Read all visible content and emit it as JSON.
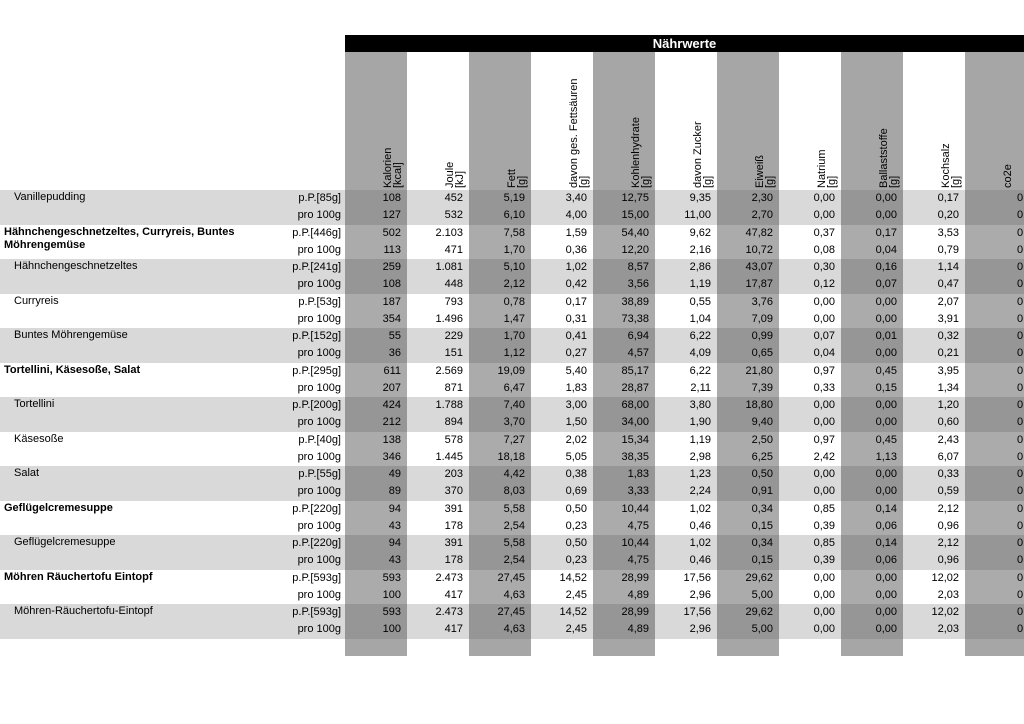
{
  "header": {
    "title": "Nährwerte"
  },
  "columns": [
    {
      "name": "Kalorien",
      "unit": "[kcal]"
    },
    {
      "name": "Joule",
      "unit": "[kJ]"
    },
    {
      "name": "Fett",
      "unit": "[g]"
    },
    {
      "name": "davon ges. Fettsäuren",
      "unit": "[g]"
    },
    {
      "name": "Kohlenhydrate",
      "unit": "[g]"
    },
    {
      "name": "davon Zucker",
      "unit": "[g]"
    },
    {
      "name": "Eiweiß",
      "unit": "[g]"
    },
    {
      "name": "Natrium",
      "unit": "[g]"
    },
    {
      "name": "Ballaststoffe",
      "unit": "[g]"
    },
    {
      "name": "Kochsalz",
      "unit": "[g]"
    },
    {
      "name": "co2e"
    }
  ],
  "rows": [
    {
      "kind": "component",
      "label": "Vanillepudding",
      "lines": [
        {
          "portion": "p.P.[85g]",
          "values": [
            "108",
            "452",
            "5,19",
            "3,40",
            "12,75",
            "9,35",
            "2,30",
            "0,00",
            "0,00",
            "0,17",
            "0"
          ]
        },
        {
          "portion": "pro 100g",
          "values": [
            "127",
            "532",
            "6,10",
            "4,00",
            "15,00",
            "11,00",
            "2,70",
            "0,00",
            "0,00",
            "0,20",
            "0"
          ]
        }
      ]
    },
    {
      "kind": "meal",
      "label": "Hähnchengeschnetzeltes, Curryreis, Buntes Möhrengemüse",
      "lines": [
        {
          "portion": "p.P.[446g]",
          "values": [
            "502",
            "2.103",
            "7,58",
            "1,59",
            "54,40",
            "9,62",
            "47,82",
            "0,37",
            "0,17",
            "3,53",
            "0"
          ]
        },
        {
          "portion": "pro 100g",
          "values": [
            "113",
            "471",
            "1,70",
            "0,36",
            "12,20",
            "2,16",
            "10,72",
            "0,08",
            "0,04",
            "0,79",
            "0"
          ]
        }
      ]
    },
    {
      "kind": "component",
      "label": "Hähnchengeschnetzeltes",
      "lines": [
        {
          "portion": "p.P.[241g]",
          "values": [
            "259",
            "1.081",
            "5,10",
            "1,02",
            "8,57",
            "2,86",
            "43,07",
            "0,30",
            "0,16",
            "1,14",
            "0"
          ]
        },
        {
          "portion": "pro 100g",
          "values": [
            "108",
            "448",
            "2,12",
            "0,42",
            "3,56",
            "1,19",
            "17,87",
            "0,12",
            "0,07",
            "0,47",
            "0"
          ]
        }
      ]
    },
    {
      "kind": "component",
      "label": "Curryreis",
      "lines": [
        {
          "portion": "p.P.[53g]",
          "values": [
            "187",
            "793",
            "0,78",
            "0,17",
            "38,89",
            "0,55",
            "3,76",
            "0,00",
            "0,00",
            "2,07",
            "0"
          ]
        },
        {
          "portion": "pro 100g",
          "values": [
            "354",
            "1.496",
            "1,47",
            "0,31",
            "73,38",
            "1,04",
            "7,09",
            "0,00",
            "0,00",
            "3,91",
            "0"
          ]
        }
      ]
    },
    {
      "kind": "component",
      "label": "Buntes Möhrengemüse",
      "lines": [
        {
          "portion": "p.P.[152g]",
          "values": [
            "55",
            "229",
            "1,70",
            "0,41",
            "6,94",
            "6,22",
            "0,99",
            "0,07",
            "0,01",
            "0,32",
            "0"
          ]
        },
        {
          "portion": "pro 100g",
          "values": [
            "36",
            "151",
            "1,12",
            "0,27",
            "4,57",
            "4,09",
            "0,65",
            "0,04",
            "0,00",
            "0,21",
            "0"
          ]
        }
      ]
    },
    {
      "kind": "meal",
      "label": "Tortellini, Käsesoße, Salat",
      "lines": [
        {
          "portion": "p.P.[295g]",
          "values": [
            "611",
            "2.569",
            "19,09",
            "5,40",
            "85,17",
            "6,22",
            "21,80",
            "0,97",
            "0,45",
            "3,95",
            "0"
          ]
        },
        {
          "portion": "pro 100g",
          "values": [
            "207",
            "871",
            "6,47",
            "1,83",
            "28,87",
            "2,11",
            "7,39",
            "0,33",
            "0,15",
            "1,34",
            "0"
          ]
        }
      ]
    },
    {
      "kind": "component",
      "label": "Tortellini",
      "lines": [
        {
          "portion": "p.P.[200g]",
          "values": [
            "424",
            "1.788",
            "7,40",
            "3,00",
            "68,00",
            "3,80",
            "18,80",
            "0,00",
            "0,00",
            "1,20",
            "0"
          ]
        },
        {
          "portion": "pro 100g",
          "values": [
            "212",
            "894",
            "3,70",
            "1,50",
            "34,00",
            "1,90",
            "9,40",
            "0,00",
            "0,00",
            "0,60",
            "0"
          ]
        }
      ]
    },
    {
      "kind": "component",
      "label": "Käsesoße",
      "lines": [
        {
          "portion": "p.P.[40g]",
          "values": [
            "138",
            "578",
            "7,27",
            "2,02",
            "15,34",
            "1,19",
            "2,50",
            "0,97",
            "0,45",
            "2,43",
            "0"
          ]
        },
        {
          "portion": "pro 100g",
          "values": [
            "346",
            "1.445",
            "18,18",
            "5,05",
            "38,35",
            "2,98",
            "6,25",
            "2,42",
            "1,13",
            "6,07",
            "0"
          ]
        }
      ]
    },
    {
      "kind": "component",
      "label": "Salat",
      "lines": [
        {
          "portion": "p.P.[55g]",
          "values": [
            "49",
            "203",
            "4,42",
            "0,38",
            "1,83",
            "1,23",
            "0,50",
            "0,00",
            "0,00",
            "0,33",
            "0"
          ]
        },
        {
          "portion": "pro 100g",
          "values": [
            "89",
            "370",
            "8,03",
            "0,69",
            "3,33",
            "2,24",
            "0,91",
            "0,00",
            "0,00",
            "0,59",
            "0"
          ]
        }
      ]
    },
    {
      "kind": "meal",
      "label": "Geflügelcremesuppe",
      "lines": [
        {
          "portion": "p.P.[220g]",
          "values": [
            "94",
            "391",
            "5,58",
            "0,50",
            "10,44",
            "1,02",
            "0,34",
            "0,85",
            "0,14",
            "2,12",
            "0"
          ]
        },
        {
          "portion": "pro 100g",
          "values": [
            "43",
            "178",
            "2,54",
            "0,23",
            "4,75",
            "0,46",
            "0,15",
            "0,39",
            "0,06",
            "0,96",
            "0"
          ]
        }
      ]
    },
    {
      "kind": "component",
      "label": "Geflügelcremesuppe",
      "lines": [
        {
          "portion": "p.P.[220g]",
          "values": [
            "94",
            "391",
            "5,58",
            "0,50",
            "10,44",
            "1,02",
            "0,34",
            "0,85",
            "0,14",
            "2,12",
            "0"
          ]
        },
        {
          "portion": "pro 100g",
          "values": [
            "43",
            "178",
            "2,54",
            "0,23",
            "4,75",
            "0,46",
            "0,15",
            "0,39",
            "0,06",
            "0,96",
            "0"
          ]
        }
      ]
    },
    {
      "kind": "meal",
      "label": "Möhren Räuchertofu Eintopf",
      "lines": [
        {
          "portion": "p.P.[593g]",
          "values": [
            "593",
            "2.473",
            "27,45",
            "14,52",
            "28,99",
            "17,56",
            "29,62",
            "0,00",
            "0,00",
            "12,02",
            "0"
          ]
        },
        {
          "portion": "pro 100g",
          "values": [
            "100",
            "417",
            "4,63",
            "2,45",
            "4,89",
            "2,96",
            "5,00",
            "0,00",
            "0,00",
            "2,03",
            "0"
          ]
        }
      ]
    },
    {
      "kind": "component",
      "label": "Möhren-Räuchertofu-Eintopf",
      "lines": [
        {
          "portion": "p.P.[593g]",
          "values": [
            "593",
            "2.473",
            "27,45",
            "14,52",
            "28,99",
            "17,56",
            "29,62",
            "0,00",
            "0,00",
            "12,02",
            "0"
          ]
        },
        {
          "portion": "pro 100g",
          "values": [
            "100",
            "417",
            "4,63",
            "2,45",
            "4,89",
            "2,96",
            "5,00",
            "0,00",
            "0,00",
            "2,03",
            "0"
          ]
        }
      ]
    }
  ]
}
